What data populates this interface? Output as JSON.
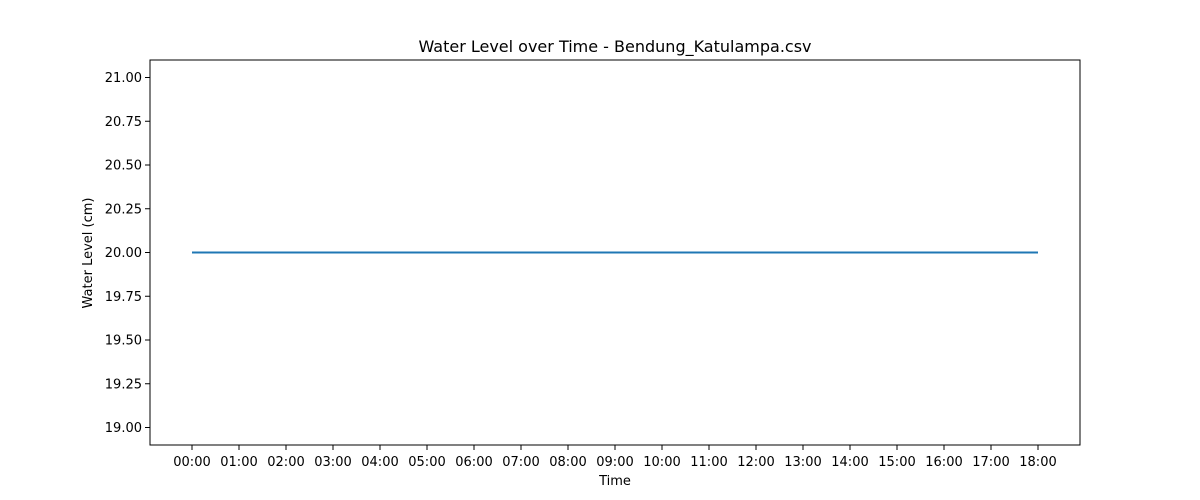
{
  "chart_data": {
    "type": "line",
    "title": "Water Level over Time - Bendung_Katulampa.csv",
    "xlabel": "Time",
    "ylabel": "Water Level (cm)",
    "x": [
      "00:00",
      "01:00",
      "02:00",
      "03:00",
      "04:00",
      "05:00",
      "06:00",
      "07:00",
      "08:00",
      "09:00",
      "10:00",
      "11:00",
      "12:00",
      "13:00",
      "14:00",
      "15:00",
      "16:00",
      "17:00",
      "18:00"
    ],
    "series": [
      {
        "values": [
          20,
          20,
          20,
          20,
          20,
          20,
          20,
          20,
          20,
          20,
          20,
          20,
          20,
          20,
          20,
          20,
          20,
          20,
          20
        ],
        "color": "#1f77b4"
      }
    ],
    "ylim": [
      18.9,
      21.1
    ],
    "yticks": [
      "19.00",
      "19.25",
      "19.50",
      "19.75",
      "20.00",
      "20.25",
      "20.50",
      "20.75",
      "21.00"
    ],
    "grid": false,
    "legend": "none"
  }
}
